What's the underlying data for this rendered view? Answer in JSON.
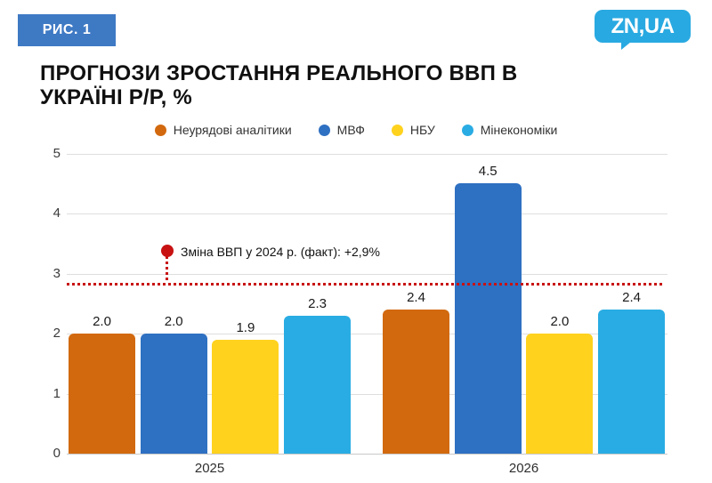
{
  "figure_badge": "РИС. 1",
  "logo_text": "ZN,UA",
  "title": "ПРОГНОЗИ ЗРОСТАННЯ РЕАЛЬНОГО ВВП В УКРАЇНІ Р/Р, %",
  "title_lines": [
    "ПРОГНОЗИ ЗРОСТАННЯ РЕАЛЬНОГО ВВП В",
    "УКРАЇНІ Р/Р, %"
  ],
  "colors": {
    "non_gov_analysts_orange": "#D2690E",
    "imf_blue": "#2E70C2",
    "nbu_yellow": "#FFD21E",
    "min_economy_cyan": "#29ACE3",
    "reference_red": "#C81212",
    "badge_blue": "#3E79C4",
    "logo_blue": "#29A9E1"
  },
  "chart_data": {
    "type": "bar",
    "categories": [
      "2025",
      "2026"
    ],
    "series": [
      {
        "name": "Неурядові аналітики",
        "color": "#D2690E",
        "values": [
          2.0,
          2.4
        ]
      },
      {
        "name": "МВФ",
        "color": "#2E70C2",
        "values": [
          2.0,
          4.5
        ]
      },
      {
        "name": "НБУ",
        "color": "#FFD21E",
        "values": [
          1.9,
          2.0
        ]
      },
      {
        "name": "Мінекономіки",
        "color": "#29ACE3",
        "values": [
          2.3,
          2.4
        ]
      }
    ],
    "ylim": [
      0,
      5
    ],
    "yticks": [
      0,
      1,
      2,
      3,
      4,
      5
    ],
    "grid": true,
    "legend_position": "top-center",
    "value_label_format": "one_decimal",
    "reference_line": {
      "value": 2.9,
      "label": "Зміна ВВП у 2024 р. (факт): +2,9%",
      "style": "dotted",
      "color": "#C81212"
    }
  }
}
